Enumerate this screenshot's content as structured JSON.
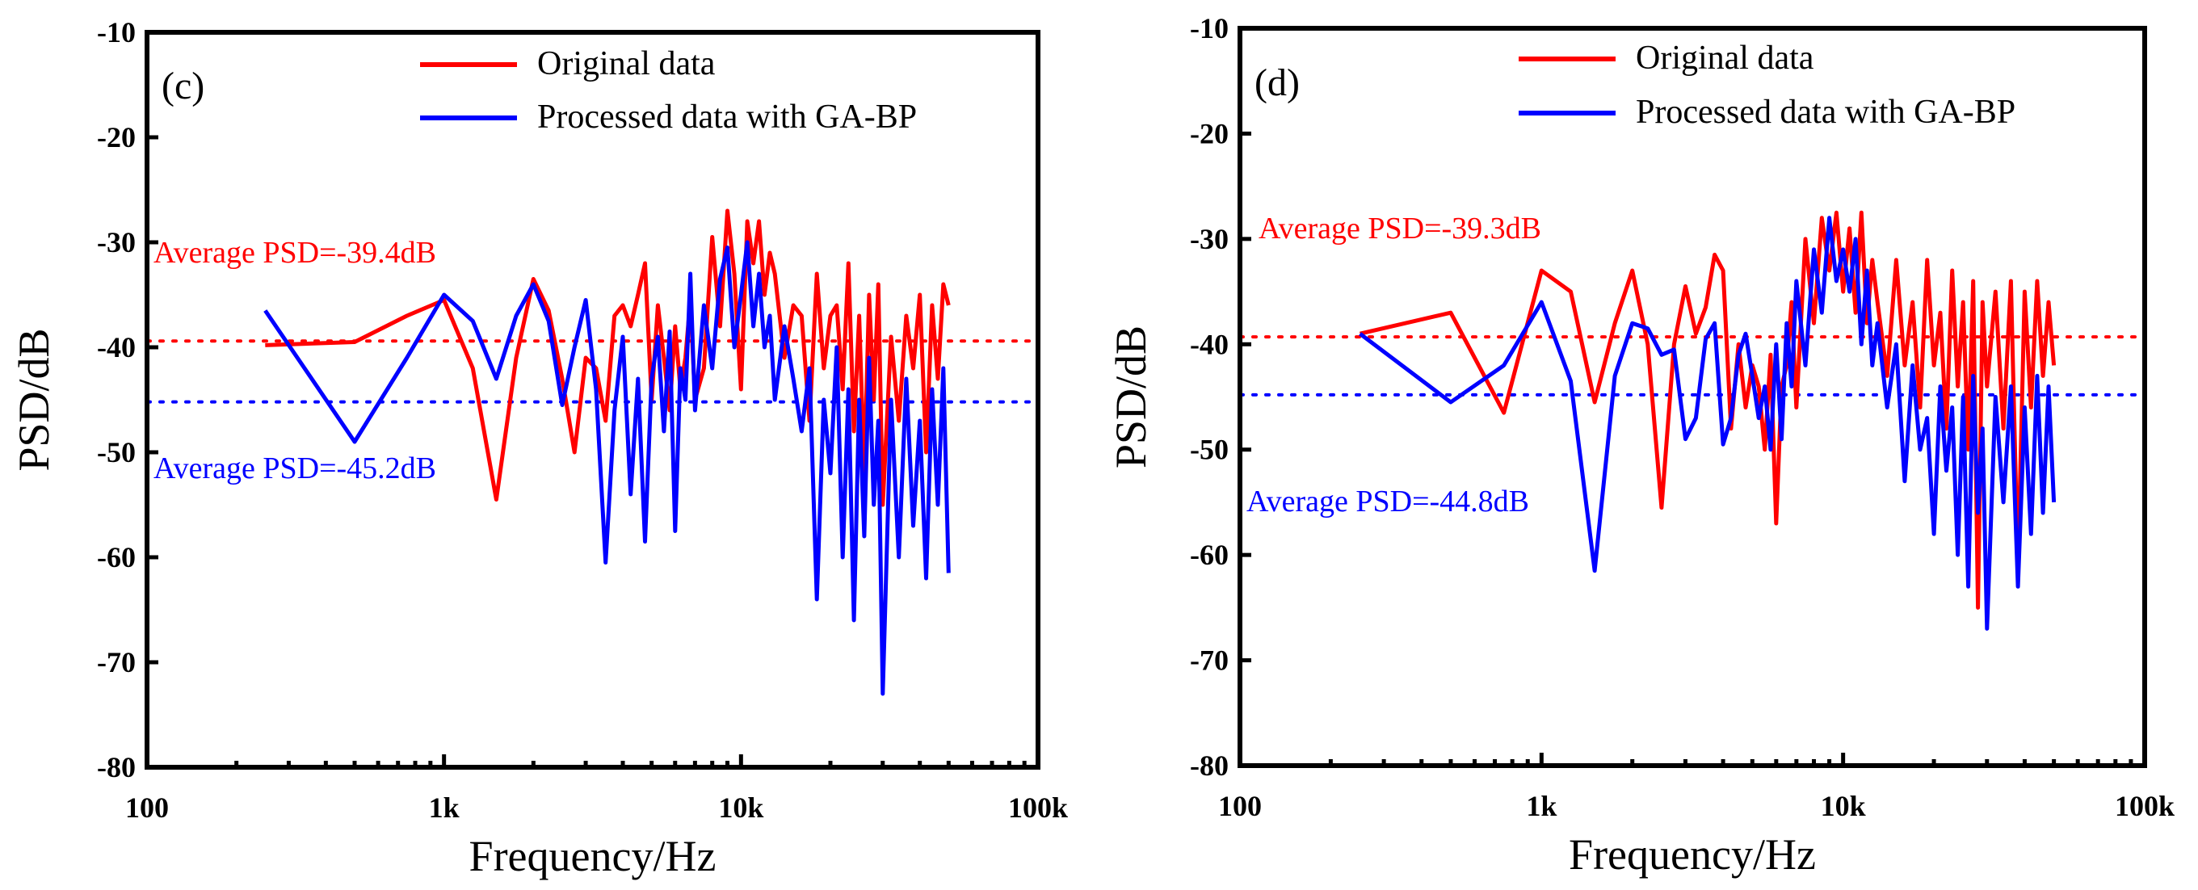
{
  "chart_data": [
    {
      "type": "line",
      "panel_label": "(c)",
      "xscale": "log",
      "xlim": [
        100,
        100000
      ],
      "ylim": [
        -80,
        -10
      ],
      "xlabel": "Frequency/Hz",
      "ylabel": "PSD/dB",
      "xticklabels": [
        "100",
        "1k",
        "10k",
        "100k"
      ],
      "xtickvalues": [
        100,
        1000,
        10000,
        100000
      ],
      "yticks": [
        -80,
        -70,
        -60,
        -50,
        -40,
        -30,
        -20,
        -10
      ],
      "legend": [
        "Original data",
        "Processed data with GA-BP"
      ],
      "colors": {
        "original": "#ff0000",
        "processed": "#0000ff"
      },
      "annotations": [
        {
          "text": "Average PSD=-39.4dB",
          "color": "#ff0000",
          "value": -39.4
        },
        {
          "text": "Average PSD=-45.2dB",
          "color": "#0000ff",
          "value": -45.2
        }
      ],
      "series": [
        {
          "name": "Original data",
          "x": [
            250,
            500,
            750,
            1000,
            1250,
            1500,
            1750,
            2000,
            2250,
            2500,
            2750,
            3000,
            3250,
            3500,
            3750,
            4000,
            4250,
            4500,
            4750,
            5000,
            5250,
            5500,
            5750,
            6000,
            6250,
            6500,
            6750,
            7000,
            7500,
            8000,
            8500,
            9000,
            9500,
            10000,
            10500,
            11000,
            11500,
            12000,
            12500,
            13000,
            14000,
            15000,
            16000,
            17000,
            18000,
            19000,
            20000,
            21000,
            22000,
            23000,
            24000,
            25000,
            26000,
            27000,
            28000,
            29000,
            30000,
            32000,
            34000,
            36000,
            38000,
            40000,
            42000,
            44000,
            46000,
            48000,
            50000
          ],
          "values": [
            -39.8,
            -39.5,
            -37,
            -35.5,
            -42,
            -54.5,
            -41,
            -33.5,
            -36.5,
            -43,
            -50,
            -41,
            -42,
            -47,
            -37,
            -36,
            -38,
            -35,
            -32,
            -45,
            -36,
            -41,
            -46,
            -38,
            -44,
            -41,
            -35.5,
            -45,
            -42,
            -29.5,
            -38,
            -27,
            -33,
            -44,
            -28,
            -32,
            -28,
            -35,
            -31,
            -33,
            -41,
            -36,
            -37,
            -47,
            -33,
            -42,
            -37,
            -36,
            -44,
            -32,
            -48,
            -37,
            -52,
            -35,
            -45,
            -34,
            -55,
            -39,
            -47,
            -37,
            -42,
            -35,
            -50,
            -36,
            -43,
            -34,
            -36
          ]
        },
        {
          "name": "Processed data with GA-BP",
          "x": [
            250,
            500,
            750,
            1000,
            1250,
            1500,
            1750,
            2000,
            2250,
            2500,
            2750,
            3000,
            3250,
            3500,
            3750,
            4000,
            4250,
            4500,
            4750,
            5000,
            5250,
            5500,
            5750,
            6000,
            6250,
            6500,
            6750,
            7000,
            7500,
            8000,
            8500,
            9000,
            9500,
            10000,
            10500,
            11000,
            11500,
            12000,
            12500,
            13000,
            14000,
            15000,
            16000,
            17000,
            18000,
            19000,
            20000,
            21000,
            22000,
            23000,
            24000,
            25000,
            26000,
            27000,
            28000,
            29000,
            30000,
            32000,
            34000,
            36000,
            38000,
            40000,
            42000,
            44000,
            46000,
            48000,
            50000
          ],
          "values": [
            -36.5,
            -49,
            -41,
            -35,
            -37.5,
            -43,
            -37,
            -34,
            -37.5,
            -45.5,
            -40,
            -35.5,
            -44,
            -60.5,
            -46,
            -39,
            -54,
            -43,
            -58.5,
            -43,
            -39,
            -48,
            -38.5,
            -57.5,
            -42,
            -45,
            -33,
            -46,
            -36,
            -42,
            -33.5,
            -30.5,
            -40,
            -35,
            -30,
            -38,
            -33,
            -40,
            -37,
            -45,
            -38,
            -43,
            -48,
            -42,
            -64,
            -45,
            -52,
            -40,
            -60,
            -44,
            -66,
            -45,
            -58,
            -41,
            -55,
            -47,
            -73,
            -45,
            -60,
            -43,
            -57,
            -47,
            -62,
            -44,
            -55,
            -42,
            -61.5
          ]
        }
      ]
    },
    {
      "type": "line",
      "panel_label": "(d)",
      "xscale": "log",
      "xlim": [
        100,
        100000
      ],
      "ylim": [
        -80,
        -10
      ],
      "xlabel": "Frequency/Hz",
      "ylabel": "PSD/dB",
      "xticklabels": [
        "100",
        "1k",
        "10k",
        "100k"
      ],
      "xtickvalues": [
        100,
        1000,
        10000,
        100000
      ],
      "yticks": [
        -80,
        -70,
        -60,
        -50,
        -40,
        -30,
        -20,
        -10
      ],
      "legend": [
        "Original data",
        "Processed data with GA-BP"
      ],
      "colors": {
        "original": "#ff0000",
        "processed": "#0000ff"
      },
      "annotations": [
        {
          "text": "Average PSD=-39.3dB",
          "color": "#ff0000",
          "value": -39.3
        },
        {
          "text": "Average PSD=-44.8dB",
          "color": "#0000ff",
          "value": -44.8
        }
      ],
      "series": [
        {
          "name": "Original data",
          "x": [
            250,
            500,
            750,
            1000,
            1250,
            1500,
            1750,
            2000,
            2250,
            2500,
            2750,
            3000,
            3250,
            3500,
            3750,
            4000,
            4250,
            4500,
            4750,
            5000,
            5250,
            5500,
            5750,
            6000,
            6250,
            6500,
            6750,
            7000,
            7500,
            8000,
            8500,
            9000,
            9500,
            10000,
            10500,
            11000,
            11500,
            12000,
            12500,
            13000,
            14000,
            15000,
            16000,
            17000,
            18000,
            19000,
            20000,
            21000,
            22000,
            23000,
            24000,
            25000,
            26000,
            27000,
            28000,
            29000,
            30000,
            32000,
            34000,
            36000,
            38000,
            40000,
            42000,
            44000,
            46000,
            48000,
            50000
          ],
          "values": [
            -39,
            -37,
            -46.5,
            -33,
            -35,
            -45.5,
            -38,
            -33,
            -40,
            -55.5,
            -40,
            -34.5,
            -39,
            -36.5,
            -31.5,
            -33,
            -48,
            -40,
            -46,
            -42,
            -44,
            -50,
            -41,
            -57,
            -44,
            -42,
            -36,
            -46,
            -30,
            -38,
            -28,
            -33,
            -27.5,
            -35,
            -29,
            -37,
            -27.5,
            -38,
            -32,
            -36,
            -43,
            -32,
            -42,
            -36,
            -46,
            -32,
            -42,
            -37,
            -48,
            -33,
            -44,
            -36,
            -50,
            -34,
            -65,
            -36,
            -44,
            -35,
            -48,
            -34,
            -61.5,
            -35,
            -46,
            -34,
            -43,
            -36,
            -42
          ]
        },
        {
          "name": "Processed data with GA-BP",
          "x": [
            250,
            500,
            750,
            1000,
            1250,
            1500,
            1750,
            2000,
            2250,
            2500,
            2750,
            3000,
            3250,
            3500,
            3750,
            4000,
            4250,
            4500,
            4750,
            5000,
            5250,
            5500,
            5750,
            6000,
            6250,
            6500,
            6750,
            7000,
            7500,
            8000,
            8500,
            9000,
            9500,
            10000,
            10500,
            11000,
            11500,
            12000,
            12500,
            13000,
            14000,
            15000,
            16000,
            17000,
            18000,
            19000,
            20000,
            21000,
            22000,
            23000,
            24000,
            25000,
            26000,
            27000,
            28000,
            29000,
            30000,
            32000,
            34000,
            36000,
            38000,
            40000,
            42000,
            44000,
            46000,
            48000,
            50000
          ],
          "values": [
            -39,
            -45.5,
            -42,
            -36,
            -43.5,
            -61.5,
            -43,
            -38,
            -38.5,
            -41,
            -40.5,
            -49,
            -47,
            -39.5,
            -38,
            -49.5,
            -47,
            -41,
            -39,
            -43,
            -47,
            -44,
            -50,
            -40,
            -49,
            -38,
            -44,
            -34,
            -42,
            -31,
            -37,
            -28,
            -34,
            -31,
            -35,
            -30,
            -40,
            -33,
            -42,
            -38,
            -46,
            -40,
            -53,
            -42,
            -50,
            -47,
            -58,
            -44,
            -52,
            -46,
            -60,
            -45,
            -63,
            -43,
            -56,
            -48,
            -67,
            -45,
            -55,
            -44,
            -63,
            -46,
            -58,
            -43,
            -56,
            -44,
            -55
          ]
        }
      ]
    }
  ]
}
